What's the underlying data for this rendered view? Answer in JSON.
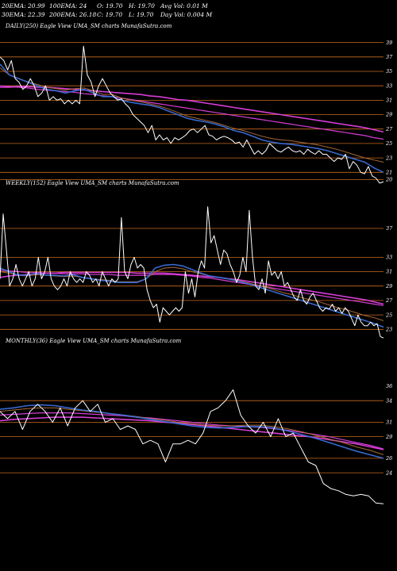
{
  "header": {
    "row1": [
      "20EMA: 20.99",
      "100EMA: 24",
      "O: 19.70",
      "H: 19.70",
      "Avg Vol: 0.01 M"
    ],
    "row2": [
      "30EMA: 22.39",
      "200EMA: 26.18",
      "C: 19.70",
      "L: 19.70",
      "Day Vol: 0.004  M"
    ]
  },
  "colors": {
    "background": "#000000",
    "price": "#ffffff",
    "ema_blue": "#3a6fd8",
    "ema_magenta": "#e040e0",
    "ema_brown": "#b0703a",
    "level_line": "#c86a1e"
  },
  "chart_data": [
    {
      "type": "line",
      "title": "DAILY(250) Eagle  View  UMA_SM charts MunafaSutra.com",
      "ylim": [
        18.5,
        40.5
      ],
      "yticks": [
        39,
        37,
        35,
        33,
        31,
        29,
        27,
        25,
        23,
        21,
        20
      ],
      "levels": [
        39,
        37,
        35,
        33,
        31,
        29,
        27,
        25,
        23,
        21,
        20
      ],
      "grid": false,
      "price": [
        37,
        36.5,
        35.2,
        36.5,
        34,
        33.5,
        32.5,
        33,
        34,
        33,
        31.5,
        32,
        33,
        31,
        31.5,
        31,
        31.2,
        30.5,
        31,
        30.5,
        31,
        30.5,
        38.5,
        34.5,
        33.5,
        31.5,
        33,
        34,
        33,
        32,
        31.5,
        31,
        31.2,
        30.5,
        30,
        29,
        28.5,
        28,
        27.5,
        26.5,
        27.5,
        25.5,
        26.2,
        25.5,
        25.8,
        25,
        25.8,
        25.5,
        25.8,
        26.2,
        26.8,
        27,
        26.5,
        27,
        27.5,
        26.2,
        26,
        25.5,
        25.8,
        26,
        25.8,
        25.5,
        25,
        25.2,
        24.5,
        25.5,
        24.5,
        23.5,
        24,
        23.5,
        24,
        25,
        24.5,
        24,
        23.8,
        24.2,
        24.5,
        24,
        23.8,
        24,
        23.5,
        24.2,
        23.8,
        23.5,
        24,
        23.5,
        23.5,
        23,
        22.5,
        23,
        22.8,
        23.5,
        21.5,
        22.5,
        22,
        21,
        20.8,
        21.8,
        20.5,
        20.2,
        19.5,
        19.7
      ],
      "ema20": [
        36,
        34.5,
        34,
        33.5,
        33,
        32.5,
        32.3,
        32,
        32.3,
        32.5,
        32,
        31.5,
        31.5,
        31,
        30.7,
        30.5,
        30.3,
        30,
        29.5,
        29,
        28.5,
        28.2,
        28,
        27.7,
        27.3,
        26.8,
        26.5,
        26,
        25.5,
        25.2,
        25,
        24.9,
        24.7,
        24.5,
        24.3,
        24,
        23.6,
        23.2,
        22.8,
        22.4,
        21.6,
        21
      ],
      "ema30": [
        35.5,
        34.5,
        34,
        33.5,
        33.2,
        32.8,
        32.6,
        32.4,
        32.6,
        32.7,
        32.3,
        31.8,
        31.8,
        31.3,
        31,
        30.8,
        30.5,
        30.2,
        29.8,
        29.3,
        28.8,
        28.5,
        28.2,
        27.9,
        27.5,
        27.1,
        26.8,
        26.4,
        26,
        25.7,
        25.5,
        25.4,
        25.2,
        25,
        24.8,
        24.5,
        24.2,
        23.8,
        23.4,
        23,
        22.7,
        22.4
      ],
      "ema100": [
        33,
        32.9,
        32.8,
        32.7,
        32.5,
        32.4,
        32.3,
        32.2,
        32.1,
        31.9,
        31.8,
        31.6,
        31.5,
        31.3,
        31.1,
        30.9,
        30.7,
        30.5,
        30.3,
        30.1,
        29.9,
        29.7,
        29.5,
        29.3,
        29.1,
        28.9,
        28.7,
        28.5,
        28.3,
        28.1,
        27.9,
        27.7,
        27.5,
        27.3,
        27.1,
        26.9,
        26.7,
        26.5,
        26.3,
        26.1,
        25.8,
        25.6
      ],
      "ema200": [
        32.8,
        32.8,
        32.9,
        32.9,
        32.8,
        32.8,
        32.7,
        32.6,
        32.5,
        32.4,
        32.3,
        32.2,
        32.1,
        32,
        31.9,
        31.8,
        31.6,
        31.5,
        31.3,
        31.1,
        31,
        30.8,
        30.6,
        30.4,
        30.2,
        30,
        29.8,
        29.6,
        29.4,
        29.2,
        29,
        28.8,
        28.6,
        28.4,
        28.2,
        28,
        27.8,
        27.6,
        27.4,
        27.2,
        26.9,
        26.6
      ]
    },
    {
      "type": "line",
      "title": "WEEKLY(152) Eagle  View  UMA_SM charts MunafaSutra.com",
      "ylim": [
        20.5,
        42.5
      ],
      "yticks": [
        37,
        33,
        31,
        29,
        27,
        25,
        23
      ],
      "levels": [
        37,
        33,
        31,
        29,
        27,
        25,
        23
      ],
      "grid": false,
      "price": [
        30,
        39,
        34,
        29,
        30,
        32,
        30,
        29,
        30,
        31,
        29,
        30,
        33,
        30,
        31,
        33,
        30,
        29,
        28.5,
        29,
        30,
        29,
        31,
        30,
        29.5,
        30,
        29.5,
        31,
        30.5,
        29.5,
        30,
        29,
        31,
        30,
        29,
        30,
        29.5,
        30,
        38.5,
        31,
        30,
        32,
        33,
        31.5,
        32,
        31.5,
        28.5,
        27,
        26,
        26.5,
        24,
        26,
        25.5,
        25,
        25.5,
        26,
        25.5,
        26,
        31,
        28,
        30,
        27.5,
        31,
        32.5,
        31.5,
        40,
        35,
        36,
        34,
        32,
        34,
        33.5,
        32,
        31,
        29.5,
        30.5,
        33,
        31,
        39.5,
        33,
        29,
        28.5,
        30,
        28,
        32.5,
        30.5,
        31,
        30,
        31,
        29,
        29.5,
        28.5,
        27.5,
        27,
        28.5,
        27,
        26.5,
        27.5,
        28,
        27,
        26,
        25.5,
        26,
        25.8,
        26.5,
        25.5,
        26,
        25.2,
        26,
        25.5,
        24.5,
        23.5,
        25,
        24,
        23.5,
        23.5,
        24,
        23.5,
        23.8,
        22,
        21.8
      ],
      "ema20": [
        31.5,
        31,
        30.5,
        30.5,
        30.8,
        30.5,
        30.5,
        30.4,
        30.6,
        30.2,
        30,
        29.8,
        29.7,
        29.5,
        29.5,
        29.5,
        30,
        31.5,
        31.9,
        32,
        31.8,
        31.3,
        30.8,
        30.4,
        30.2,
        30,
        29.7,
        29.4,
        29,
        28.6,
        28.2,
        27.8,
        27.4,
        27,
        26.6,
        26.2,
        25.8,
        25.4,
        25,
        24.6,
        24.2,
        23.8,
        23.3
      ],
      "ema30": [
        31,
        30.8,
        30.5,
        30.4,
        30.6,
        30.5,
        30.4,
        30.3,
        30.4,
        30.2,
        30,
        29.9,
        29.8,
        29.6,
        29.6,
        29.6,
        30,
        31,
        31.5,
        31.6,
        31.4,
        31,
        30.7,
        30.4,
        30.2,
        30,
        29.8,
        29.5,
        29.2,
        28.9,
        28.5,
        28.1,
        27.8,
        27.4,
        27.1,
        26.8,
        26.4,
        26,
        25.7,
        25.3,
        24.9,
        24.6,
        24.2
      ],
      "ema100": [
        31.2,
        31.1,
        31,
        30.9,
        30.9,
        30.8,
        30.8,
        30.7,
        30.7,
        30.7,
        30.6,
        30.6,
        30.6,
        30.5,
        30.5,
        30.5,
        30.5,
        30.6,
        30.6,
        30.6,
        30.5,
        30.4,
        30.2,
        30.1,
        29.9,
        29.7,
        29.5,
        29.3,
        29.1,
        28.9,
        28.7,
        28.5,
        28.3,
        28.1,
        27.9,
        27.7,
        27.5,
        27.3,
        27.1,
        26.9,
        26.7,
        26.5,
        26.3
      ],
      "ema200": [
        30.2,
        30.4,
        30.5,
        30.6,
        30.7,
        30.8,
        30.8,
        30.9,
        30.9,
        30.9,
        30.9,
        30.9,
        30.9,
        30.9,
        30.9,
        30.8,
        30.8,
        30.8,
        30.8,
        30.7,
        30.6,
        30.5,
        30.4,
        30.3,
        30.2,
        30,
        29.9,
        29.7,
        29.5,
        29.3,
        29.1,
        28.9,
        28.7,
        28.5,
        28.3,
        28.1,
        27.9,
        27.7,
        27.5,
        27.3,
        27.1,
        26.8,
        26.5
      ]
    },
    {
      "type": "line",
      "title": "MONTHLY(36) Eagle  View  UMA_SM charts MunafaSutra.com",
      "ylim": [
        19.5,
        41.5
      ],
      "yticks": [
        36,
        34,
        31,
        29,
        26,
        24
      ],
      "levels": [
        34,
        31,
        29,
        26,
        24
      ],
      "grid": false,
      "price": [
        32.5,
        31.5,
        32.5,
        30,
        32.5,
        33.5,
        32.5,
        31,
        33,
        30.5,
        33,
        34,
        32.5,
        33.5,
        31,
        31.5,
        30,
        30.5,
        30,
        28,
        28.5,
        28,
        25.5,
        28,
        28,
        28.5,
        28,
        29.5,
        32.5,
        33,
        34,
        35.5,
        32,
        30.5,
        29.5,
        31,
        29,
        31.5,
        29,
        29.5,
        27.5,
        25.5,
        25,
        22.5,
        21.8,
        21.5,
        21,
        20.8,
        21,
        20.8,
        19.8,
        19.7
      ],
      "ema20": [
        32.8,
        33,
        33.3,
        33.4,
        33.3,
        33,
        32.7,
        32.5,
        32.2,
        32,
        31.7,
        31.4,
        31.1,
        30.8,
        30.5,
        30.3,
        30.2,
        30.3,
        30.4,
        30.4,
        30.2,
        29.8,
        29.3,
        28.8,
        28.2,
        27.6,
        27,
        26.5,
        26
      ],
      "ema30": [
        32.5,
        32.7,
        32.9,
        33,
        33,
        32.8,
        32.6,
        32.4,
        32.2,
        32,
        31.8,
        31.5,
        31.3,
        31,
        30.8,
        30.6,
        30.5,
        30.5,
        30.6,
        30.6,
        30.4,
        30.1,
        29.7,
        29.2,
        28.7,
        28.2,
        27.6,
        27.1,
        26.5
      ],
      "ema100": [
        32,
        32.1,
        32.2,
        32.3,
        32.3,
        32.3,
        32.2,
        32.1,
        32,
        31.9,
        31.7,
        31.6,
        31.4,
        31.2,
        31,
        30.8,
        30.6,
        30.5,
        30.4,
        30.3,
        30.1,
        29.9,
        29.6,
        29.3,
        29,
        28.6,
        28.2,
        27.8,
        27.3
      ],
      "ema200": [
        31.2,
        31.4,
        31.5,
        31.6,
        31.7,
        31.7,
        31.7,
        31.6,
        31.5,
        31.4,
        31.3,
        31.2,
        31,
        30.9,
        30.7,
        30.5,
        30.3,
        30.1,
        29.9,
        29.7,
        29.5,
        29.3,
        29.1,
        28.9,
        28.6,
        28.3,
        28,
        27.6,
        27.2
      ]
    }
  ]
}
